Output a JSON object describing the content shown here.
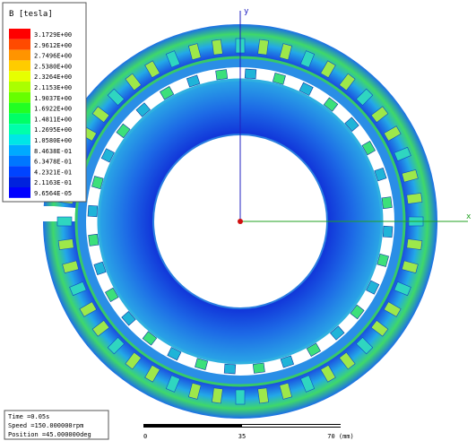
{
  "legend": {
    "title": "B [tesla]",
    "labels": [
      "3.1729E+00",
      "2.9612E+00",
      "2.7496E+00",
      "2.5380E+00",
      "2.3264E+00",
      "2.1153E+00",
      "1.9037E+00",
      "1.6922E+00",
      "1.4811E+00",
      "1.2695E+00",
      "1.0580E+00",
      "8.4638E-01",
      "6.3478E-01",
      "4.2321E-01",
      "2.1163E-01",
      "9.6564E-05"
    ],
    "colors": [
      "#ff0000",
      "#ff4a00",
      "#ff9400",
      "#ffcc00",
      "#e6ff00",
      "#aaff00",
      "#66ff00",
      "#22ff22",
      "#00ff66",
      "#00ffaa",
      "#00e6e6",
      "#00aaff",
      "#0077ff",
      "#0044ff",
      "#0022dd",
      "#0000ff"
    ]
  },
  "axes": {
    "y_label": "y",
    "x_label": "x"
  },
  "info": {
    "time": "Time    =0.05s",
    "speed": "Speed   =150.000000rpm",
    "position": "Position =45.000000deg"
  },
  "scale": {
    "ticks": [
      "0",
      "35",
      "70 (mm)"
    ]
  }
}
